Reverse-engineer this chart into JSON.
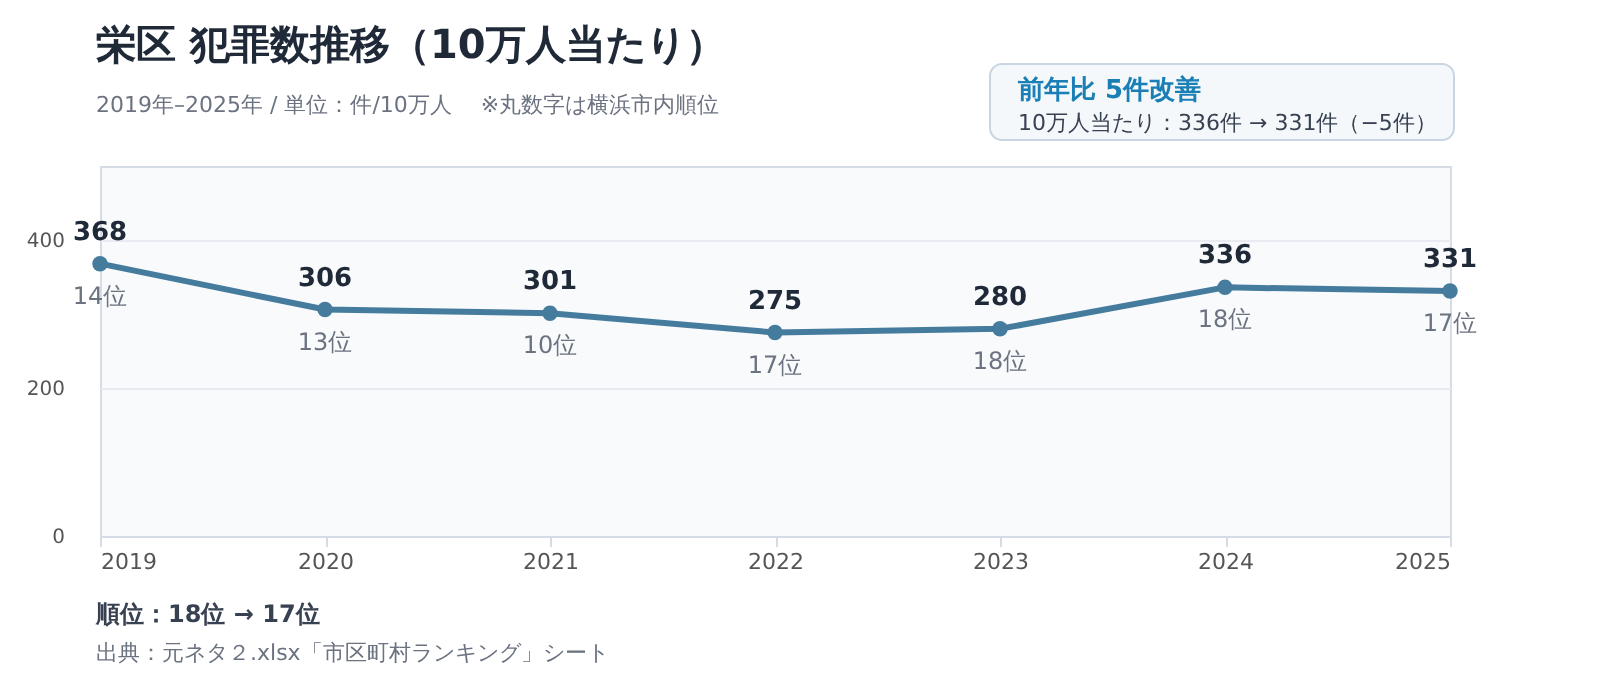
{
  "chart_data": {
    "type": "line",
    "title": "栄区  犯罪数推移（10万人当たり）",
    "subtitle": "2019年–2025年 / 単位：件/10万人　 ※丸数字は横浜市内順位",
    "categories": [
      "2019",
      "2020",
      "2021",
      "2022",
      "2023",
      "2024",
      "2025"
    ],
    "series": [
      {
        "color": "#457b9d",
        "values": [
          368,
          306,
          301,
          275,
          280,
          336,
          331
        ]
      }
    ],
    "ylim": [
      0,
      500
    ],
    "yticks": [
      0,
      200,
      400
    ],
    "grid": "y",
    "marker": "circle",
    "line_style": "solid",
    "data_labels": true,
    "annotations": [
      "前年比  5件改善",
      "10万人当たり：336件 → 331件（−5件）",
      "順位：18位 → 17位",
      "出典：元ネタ２.xlsx「市区町村ランキング」シート",
      {
        "text": "14位",
        "x": "2019",
        "y": 368
      },
      {
        "text": "13位",
        "x": "2020",
        "y": 306
      },
      {
        "text": "10位",
        "x": "2021",
        "y": 301
      },
      {
        "text": "17位",
        "x": "2022",
        "y": 275
      },
      {
        "text": "18位",
        "x": "2023",
        "y": 280
      },
      {
        "text": "18位",
        "x": "2024",
        "y": 336
      },
      {
        "text": "17位",
        "x": "2025",
        "y": 331
      }
    ]
  }
}
